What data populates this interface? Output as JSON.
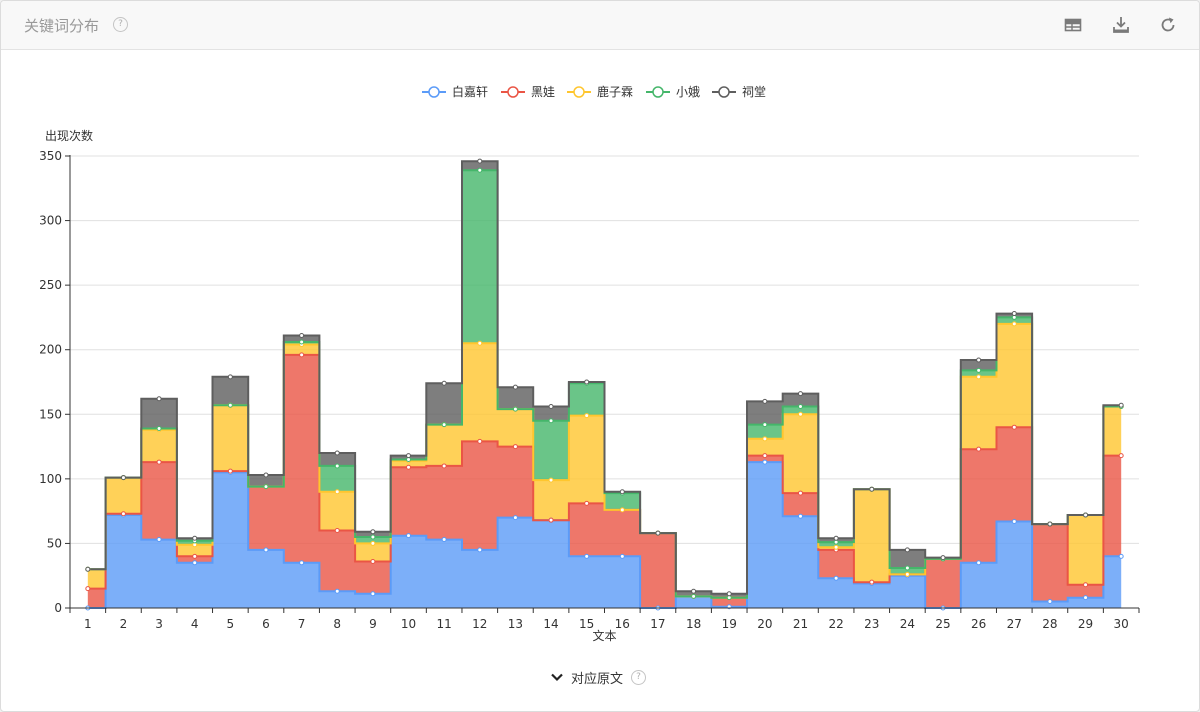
{
  "header": {
    "title": "关键词分布",
    "help": "?"
  },
  "footer": {
    "toggle_label": "对应原文",
    "help": "?"
  },
  "icons": {
    "table": "table-view-icon",
    "download": "download-icon",
    "refresh": "refresh-icon",
    "toggle": "chevron-down-icon"
  },
  "colors": {
    "白嘉轩": "#5b9bf8",
    "黑娃": "#ea5545",
    "鹿子霖": "#ffc62e",
    "小娥": "#45b66a",
    "祠堂": "#5e5e5e"
  },
  "chart_data": {
    "type": "area",
    "step": "middle",
    "stacked": true,
    "xlabel": "文本",
    "ylabel": "出现次数",
    "ylim": [
      0,
      350
    ],
    "yticks": [
      0,
      50,
      100,
      150,
      200,
      250,
      300,
      350
    ],
    "grid": true,
    "legend_position": "top-center",
    "categories": [
      "1",
      "2",
      "3",
      "4",
      "5",
      "6",
      "7",
      "8",
      "9",
      "10",
      "11",
      "12",
      "13",
      "14",
      "15",
      "16",
      "17",
      "18",
      "19",
      "20",
      "21",
      "22",
      "23",
      "24",
      "25",
      "26",
      "27",
      "28",
      "29",
      "30"
    ],
    "series": [
      {
        "name": "白嘉轩",
        "color": "#5b9bf8",
        "values": [
          0,
          72,
          53,
          35,
          105,
          45,
          35,
          13,
          11,
          56,
          53,
          45,
          70,
          68,
          40,
          40,
          0,
          9,
          1,
          113,
          71,
          23,
          19,
          25,
          0,
          35,
          67,
          5,
          8,
          40
        ]
      },
      {
        "name": "黑娃",
        "color": "#ea5545",
        "values": [
          15,
          1,
          60,
          5,
          1,
          49,
          161,
          47,
          25,
          53,
          57,
          84,
          55,
          0,
          41,
          36,
          58,
          0,
          7,
          5,
          18,
          22,
          1,
          1,
          38,
          88,
          73,
          60,
          10,
          78
        ]
      },
      {
        "name": "鹿子霖",
        "color": "#ffc62e",
        "values": [
          15,
          28,
          25,
          9,
          51,
          0,
          8,
          30,
          14,
          5,
          32,
          76,
          29,
          31,
          68,
          0,
          0,
          0,
          0,
          13,
          61,
          2,
          72,
          0,
          0,
          56,
          80,
          0,
          54,
          38
        ]
      },
      {
        "name": "小娥",
        "color": "#45b66a",
        "values": [
          0,
          0,
          1,
          3,
          0,
          0,
          2,
          20,
          5,
          1,
          0,
          134,
          0,
          46,
          25,
          13,
          0,
          0,
          0,
          11,
          6,
          4,
          0,
          5,
          0,
          5,
          5,
          0,
          0,
          0
        ]
      },
      {
        "name": "祠堂",
        "color": "#5e5e5e",
        "values": [
          0,
          0,
          23,
          2,
          22,
          9,
          5,
          10,
          4,
          3,
          32,
          7,
          17,
          11,
          1,
          1,
          0,
          4,
          3,
          18,
          10,
          3,
          0,
          14,
          1,
          8,
          3,
          0,
          0,
          1
        ]
      }
    ]
  }
}
